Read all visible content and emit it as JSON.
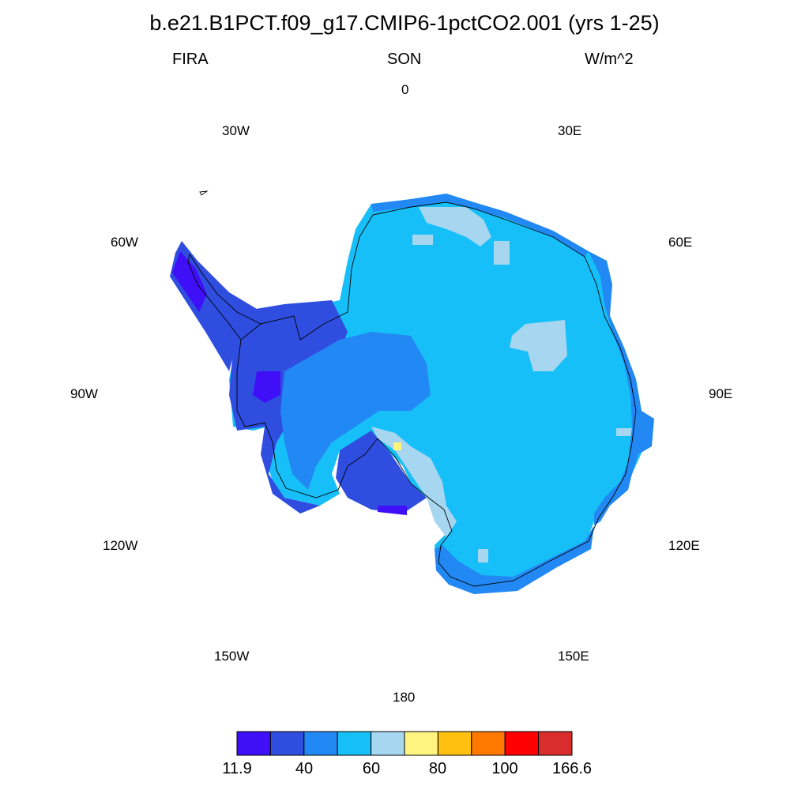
{
  "title": "b.e21.B1PCT.f09_g17.CMIP6-1pctCO2.001 (yrs 1-25)",
  "variable": "FIRA",
  "season": "SON",
  "units": "W/m^2",
  "longitude_labels": {
    "lon_0": "0",
    "lon_30e": "30E",
    "lon_60e": "60E",
    "lon_90e": "90E",
    "lon_120e": "120E",
    "lon_150e": "150E",
    "lon_180": "180",
    "lon_150w": "150W",
    "lon_120w": "120W",
    "lon_90w": "90W",
    "lon_60w": "60W",
    "lon_30w": "30W"
  },
  "colorbar": {
    "colors": [
      "#3f10f7",
      "#2f4ee0",
      "#2288f4",
      "#17bff8",
      "#a6d6f0",
      "#fff480",
      "#ffc00f",
      "#ff7800",
      "#ff0000",
      "#d92d2d"
    ],
    "labels": [
      "11.9",
      "40",
      "60",
      "80",
      "100",
      "166.6"
    ]
  },
  "map_colors": {
    "background_fill": "#17bff8",
    "coastline": "#000000"
  }
}
